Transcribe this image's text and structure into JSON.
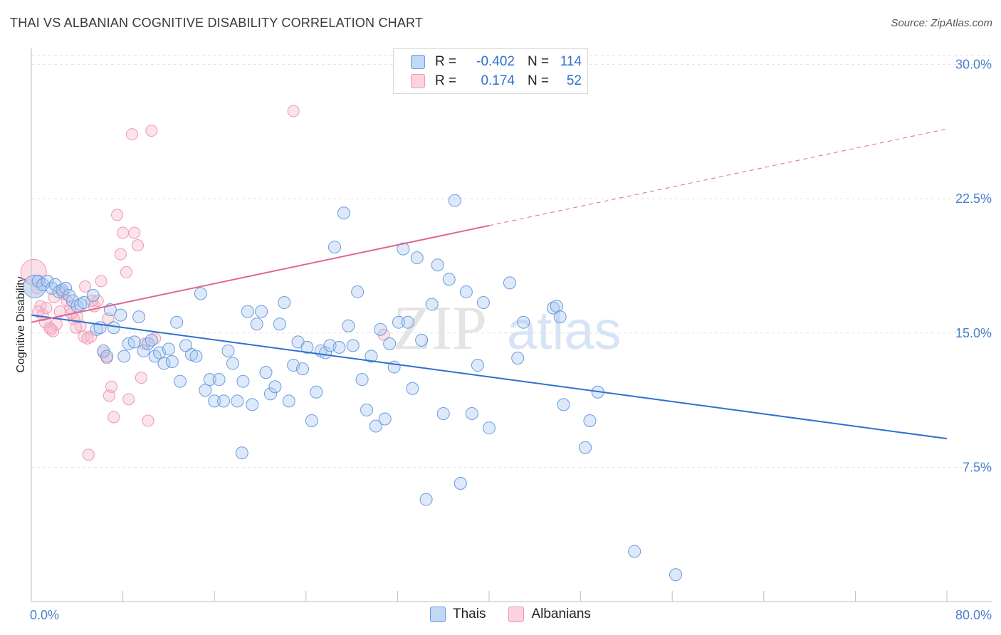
{
  "title": "THAI VS ALBANIAN COGNITIVE DISABILITY CORRELATION CHART",
  "source": "Source: ZipAtlas.com",
  "watermark": "ZIPatlas",
  "legend": {
    "rows": [
      {
        "r_label": "R =",
        "r_value": "-0.402",
        "n_label": "N =",
        "n_value": "114",
        "color": "#a9c8f0"
      },
      {
        "r_label": "R =",
        "r_value": "0.174",
        "n_label": "N =",
        "n_value": "52",
        "color": "#f5b8cb"
      }
    ]
  },
  "bottom_legend": [
    {
      "label": "Thais",
      "color": "#a9c8f0"
    },
    {
      "label": "Albanians",
      "color": "#f5b8cb"
    }
  ],
  "chart_data": {
    "type": "scatter",
    "title": "THAI VS ALBANIAN COGNITIVE DISABILITY CORRELATION CHART",
    "xlabel": "",
    "ylabel": "Cognitive Disability",
    "xlim": [
      0,
      80
    ],
    "ylim": [
      0,
      30.5
    ],
    "x_tick_labels": [
      "0.0%",
      "80.0%"
    ],
    "y_tick_labels": [
      "7.5%",
      "15.0%",
      "22.5%",
      "30.0%"
    ],
    "y_ticks": [
      7.5,
      15.0,
      22.5,
      30.0
    ],
    "grid": true,
    "legend_position": "top-center",
    "series": [
      {
        "name": "Thais",
        "color": "#6a9be0",
        "fill": "#a9c8f0",
        "trend": {
          "x0": 0,
          "y0": 16.0,
          "x1": 80,
          "y1": 9.1,
          "color": "#2f6fd0"
        },
        "points": [
          [
            0.3,
            17.6
          ],
          [
            0.6,
            17.9
          ],
          [
            1.0,
            17.7
          ],
          [
            1.4,
            17.9
          ],
          [
            1.8,
            17.5
          ],
          [
            2.1,
            17.7
          ],
          [
            2.4,
            17.3
          ],
          [
            2.7,
            17.4
          ],
          [
            3.0,
            17.5
          ],
          [
            3.3,
            17.1
          ],
          [
            3.6,
            16.8
          ],
          [
            4.0,
            16.5
          ],
          [
            4.3,
            16.6
          ],
          [
            4.6,
            16.7
          ],
          [
            5.4,
            17.1
          ],
          [
            5.7,
            15.2
          ],
          [
            6.0,
            15.3
          ],
          [
            6.3,
            14.0
          ],
          [
            6.6,
            13.7
          ],
          [
            6.9,
            16.3
          ],
          [
            7.2,
            15.3
          ],
          [
            7.8,
            16.0
          ],
          [
            8.1,
            13.7
          ],
          [
            8.5,
            14.4
          ],
          [
            9.0,
            14.5
          ],
          [
            9.4,
            15.9
          ],
          [
            9.8,
            14.0
          ],
          [
            10.2,
            14.4
          ],
          [
            10.5,
            14.6
          ],
          [
            10.8,
            13.7
          ],
          [
            11.2,
            13.9
          ],
          [
            11.6,
            13.3
          ],
          [
            12.0,
            14.1
          ],
          [
            12.3,
            13.4
          ],
          [
            12.7,
            15.6
          ],
          [
            13.0,
            12.3
          ],
          [
            13.5,
            14.3
          ],
          [
            14.0,
            13.8
          ],
          [
            14.4,
            13.7
          ],
          [
            14.8,
            17.2
          ],
          [
            15.2,
            11.8
          ],
          [
            15.6,
            12.4
          ],
          [
            16.0,
            11.2
          ],
          [
            16.4,
            12.4
          ],
          [
            16.8,
            11.2
          ],
          [
            17.2,
            14.0
          ],
          [
            17.6,
            13.3
          ],
          [
            18.0,
            11.2
          ],
          [
            18.5,
            12.3
          ],
          [
            18.9,
            16.2
          ],
          [
            19.3,
            11.0
          ],
          [
            19.7,
            15.5
          ],
          [
            20.1,
            16.2
          ],
          [
            20.5,
            12.8
          ],
          [
            20.9,
            11.6
          ],
          [
            21.3,
            12.0
          ],
          [
            21.7,
            15.5
          ],
          [
            22.1,
            16.7
          ],
          [
            22.5,
            11.2
          ],
          [
            22.9,
            13.2
          ],
          [
            23.3,
            14.5
          ],
          [
            23.7,
            13.0
          ],
          [
            24.1,
            14.2
          ],
          [
            24.5,
            10.1
          ],
          [
            24.9,
            11.7
          ],
          [
            25.3,
            14.0
          ],
          [
            25.7,
            13.9
          ],
          [
            26.1,
            14.3
          ],
          [
            26.5,
            19.8
          ],
          [
            26.9,
            14.2
          ],
          [
            27.3,
            21.7
          ],
          [
            27.7,
            15.4
          ],
          [
            28.1,
            14.3
          ],
          [
            28.5,
            17.3
          ],
          [
            28.9,
            12.4
          ],
          [
            29.3,
            10.7
          ],
          [
            29.7,
            13.7
          ],
          [
            30.1,
            9.8
          ],
          [
            30.5,
            15.2
          ],
          [
            30.9,
            10.2
          ],
          [
            31.3,
            14.4
          ],
          [
            31.7,
            13.1
          ],
          [
            32.1,
            15.6
          ],
          [
            32.5,
            19.7
          ],
          [
            32.9,
            15.6
          ],
          [
            33.3,
            11.9
          ],
          [
            33.7,
            19.2
          ],
          [
            34.1,
            14.6
          ],
          [
            34.5,
            5.7
          ],
          [
            35.0,
            16.6
          ],
          [
            35.5,
            18.8
          ],
          [
            36.0,
            10.5
          ],
          [
            36.5,
            18.0
          ],
          [
            37.0,
            22.4
          ],
          [
            37.5,
            6.6
          ],
          [
            38.0,
            17.3
          ],
          [
            38.5,
            10.5
          ],
          [
            39.0,
            13.2
          ],
          [
            39.5,
            16.7
          ],
          [
            40.0,
            9.7
          ],
          [
            41.8,
            17.8
          ],
          [
            42.5,
            13.6
          ],
          [
            43.0,
            15.6
          ],
          [
            45.6,
            16.4
          ],
          [
            45.9,
            16.5
          ],
          [
            46.2,
            15.9
          ],
          [
            46.5,
            11.0
          ],
          [
            48.4,
            8.6
          ],
          [
            48.8,
            10.1
          ],
          [
            49.5,
            11.7
          ],
          [
            18.4,
            8.3
          ],
          [
            52.7,
            2.8
          ],
          [
            56.3,
            1.5
          ]
        ]
      },
      {
        "name": "Albanians",
        "color": "#ef97b3",
        "fill": "#f5b8cb",
        "trend": {
          "x0": 0,
          "y0": 15.6,
          "x1": 80,
          "y1": 26.4,
          "solid_until_x": 40,
          "color": "#e06892"
        },
        "points": [
          [
            0.2,
            18.4
          ],
          [
            0.5,
            17.5
          ],
          [
            0.8,
            16.5
          ],
          [
            1.0,
            16.0
          ],
          [
            1.3,
            16.4
          ],
          [
            1.6,
            15.3
          ],
          [
            1.9,
            15.1
          ],
          [
            2.2,
            15.5
          ],
          [
            2.5,
            16.2
          ],
          [
            2.8,
            17.2
          ],
          [
            3.1,
            16.8
          ],
          [
            3.4,
            16.4
          ],
          [
            3.7,
            15.8
          ],
          [
            4.0,
            15.9
          ],
          [
            4.3,
            15.4
          ],
          [
            4.6,
            14.8
          ],
          [
            4.9,
            14.7
          ],
          [
            5.2,
            14.8
          ],
          [
            5.5,
            16.5
          ],
          [
            5.8,
            16.8
          ],
          [
            6.1,
            17.9
          ],
          [
            6.3,
            13.9
          ],
          [
            6.6,
            13.6
          ],
          [
            6.8,
            11.5
          ],
          [
            7.0,
            12.0
          ],
          [
            7.2,
            10.3
          ],
          [
            7.5,
            21.6
          ],
          [
            7.8,
            19.4
          ],
          [
            8.0,
            20.6
          ],
          [
            8.3,
            18.4
          ],
          [
            8.5,
            11.3
          ],
          [
            8.8,
            26.1
          ],
          [
            9.0,
            20.6
          ],
          [
            9.3,
            19.9
          ],
          [
            9.6,
            12.5
          ],
          [
            9.9,
            14.4
          ],
          [
            10.2,
            10.1
          ],
          [
            10.5,
            26.3
          ],
          [
            10.8,
            14.7
          ],
          [
            2.7,
            17.3
          ],
          [
            4.7,
            17.6
          ],
          [
            5.0,
            8.2
          ],
          [
            22.9,
            27.4
          ],
          [
            30.8,
            14.9
          ],
          [
            1.2,
            15.6
          ],
          [
            3.5,
            16.1
          ],
          [
            5.3,
            16.8
          ],
          [
            2.0,
            17.0
          ],
          [
            1.7,
            15.2
          ],
          [
            0.6,
            16.2
          ],
          [
            3.9,
            15.3
          ],
          [
            6.7,
            15.8
          ]
        ]
      }
    ]
  }
}
